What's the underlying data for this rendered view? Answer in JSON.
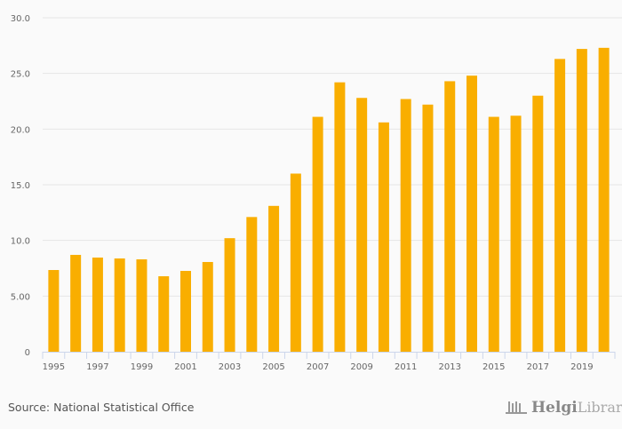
{
  "chart_data": {
    "type": "bar",
    "title": "",
    "xlabel": "",
    "ylabel": "",
    "categories": [
      "1995",
      "1996",
      "1997",
      "1998",
      "1999",
      "2000",
      "2001",
      "2002",
      "2003",
      "2004",
      "2005",
      "2006",
      "2007",
      "2008",
      "2009",
      "2010",
      "2011",
      "2012",
      "2013",
      "2014",
      "2015",
      "2016",
      "2017",
      "2018",
      "2019",
      "2020"
    ],
    "values": [
      7.34,
      8.7,
      8.46,
      8.38,
      8.3,
      6.78,
      7.26,
      8.06,
      10.2,
      12.1,
      13.1,
      16.0,
      21.1,
      24.2,
      22.8,
      20.6,
      22.7,
      22.2,
      24.3,
      24.8,
      21.1,
      21.2,
      23.0,
      26.3,
      27.2,
      27.3
    ],
    "x_tick_labels": [
      "1995",
      "1997",
      "1999",
      "2001",
      "2003",
      "2005",
      "2007",
      "2009",
      "2011",
      "2013",
      "2015",
      "2017",
      "2019"
    ],
    "y_tick_values": [
      0,
      5,
      10,
      15,
      20,
      25,
      30
    ],
    "y_tick_labels": [
      "0",
      "5.00",
      "10.0",
      "15.0",
      "20.0",
      "25.0",
      "30.0"
    ],
    "ylim": [
      0,
      30
    ],
    "grid": true,
    "bar_color": "#f9ae00"
  },
  "footer": {
    "source": "Source: National Statistical Office",
    "logo_bold": "Helgi",
    "logo_light": "Library."
  }
}
